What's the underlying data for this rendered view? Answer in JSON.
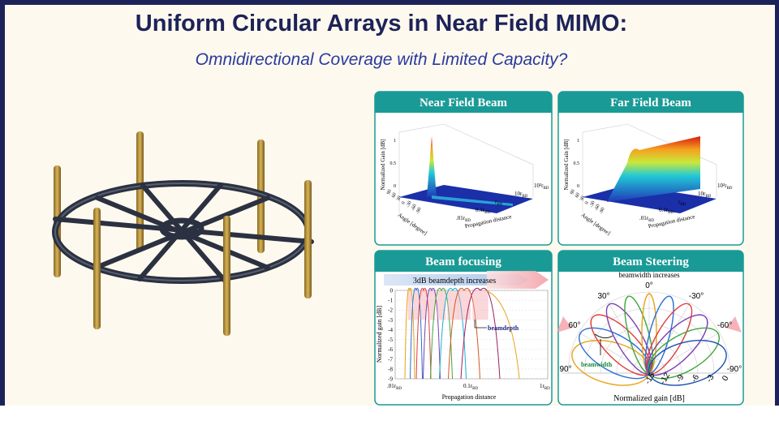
{
  "header": {
    "title": "Uniform Circular Arrays in Near Field MIMO:",
    "subtitle": "Omnidirectional Coverage with Limited Capacity?"
  },
  "panels": [
    {
      "title": "Near Field Beam",
      "z_label": "Normalized Gain [dB]",
      "x_label": "Propagation distance",
      "y_label": "Angle [degree]",
      "zticks": [
        "0",
        "0.5",
        "1"
      ],
      "angle_ticks": [
        "90",
        "60",
        "30",
        "0",
        "-30",
        "-60",
        "-90"
      ],
      "dist_ticks": [
        {
          "main": ".01r",
          "sub": "BD"
        },
        {
          "main": "0.1r",
          "sub": "BD"
        },
        {
          "main": "r",
          "sub": "BD"
        },
        {
          "main": "10r",
          "sub": "BD"
        },
        {
          "main": "10²r",
          "sub": "BD"
        }
      ]
    },
    {
      "title": "Far Field Beam",
      "z_label": "Normalized Gain [dB]",
      "x_label": "Propagation distance",
      "y_label": "Angle [degree]",
      "zticks": [
        "0",
        "0.5",
        "1"
      ],
      "angle_ticks": [
        "90",
        "60",
        "30",
        "0",
        "-30",
        "-60",
        "-90"
      ],
      "dist_ticks": [
        {
          "main": ".01r",
          "sub": "BD"
        },
        {
          "main": "0.1r",
          "sub": "BD"
        },
        {
          "main": "r",
          "sub": "BD"
        },
        {
          "main": "10r",
          "sub": "BD"
        },
        {
          "main": "10²r",
          "sub": "BD"
        }
      ]
    },
    {
      "title": "Beam focusing",
      "banner": "3dB beamdepth increases",
      "annotation": "beamdepth",
      "y_label": "Normalized gain [dB]",
      "x_label": "Propagation distance",
      "yticks": [
        "0",
        "-1",
        "-2",
        "-3",
        "-4",
        "-5",
        "-6",
        "-7",
        "-8",
        "-9"
      ],
      "xticks": [
        {
          "main": ".01r",
          "sub": "BD"
        },
        {
          "main": "0.1r",
          "sub": "BD"
        },
        {
          "main": "1r",
          "sub": "BD"
        }
      ]
    },
    {
      "title": "Beam Steering",
      "banner": "beamwidth increases",
      "annotation": "beamwidth",
      "x_label": "Normalized gain [dB]",
      "angle_ticks": [
        "0°",
        "30°",
        "-30°",
        "60°",
        "-60°",
        "90°",
        "-90°"
      ],
      "radial_ticks": [
        "-15",
        "-12",
        "-9",
        "-6",
        "-3",
        "0"
      ]
    }
  ]
}
